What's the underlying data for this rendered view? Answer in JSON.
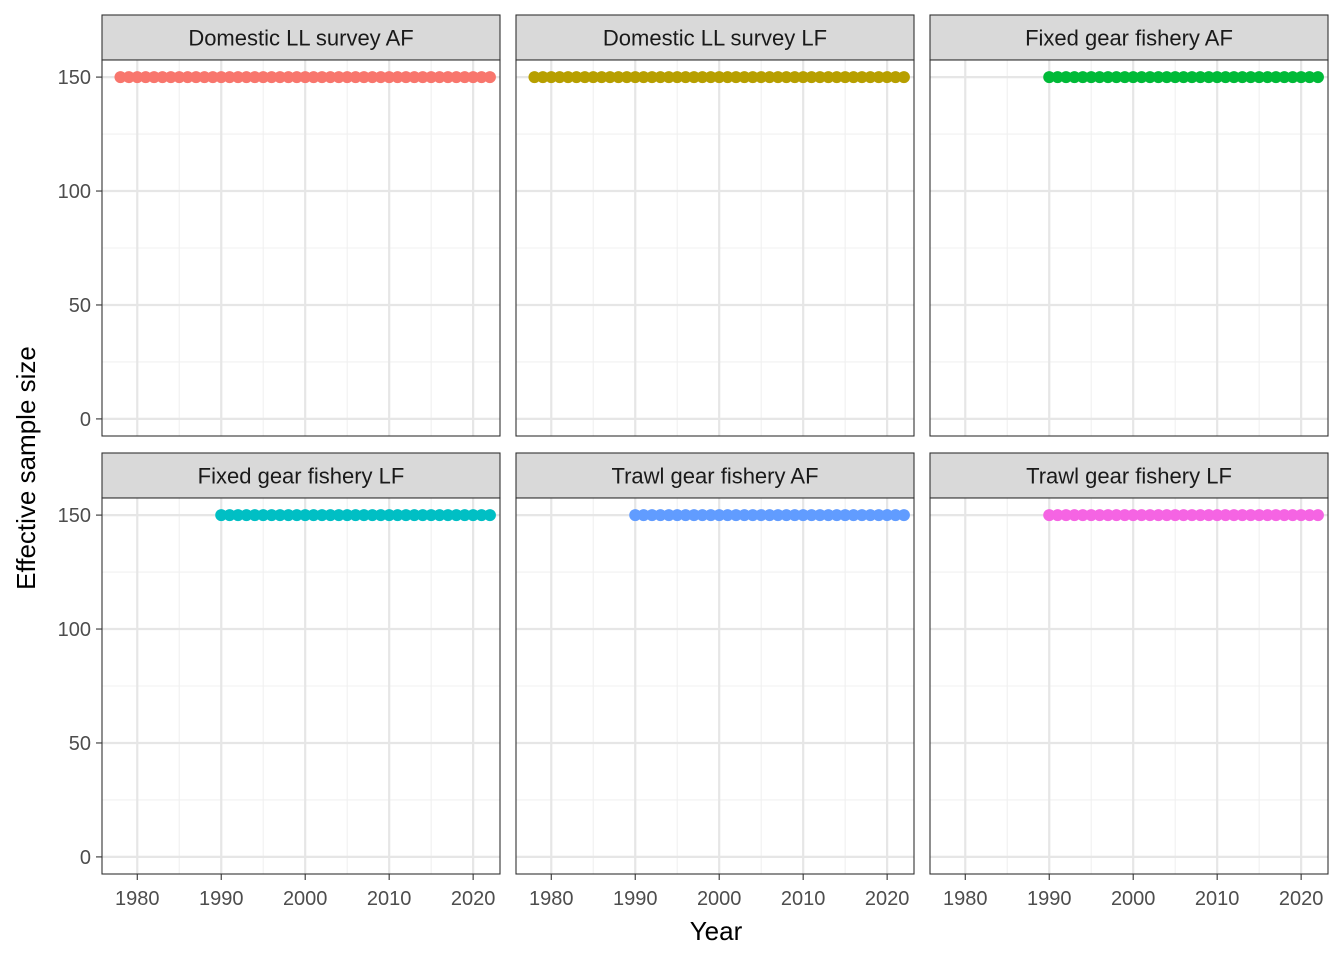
{
  "chart_data": {
    "type": "scatter",
    "layout": "facet-grid 2x3",
    "xlabel": "Year",
    "ylabel": "Effective sample size",
    "xlim": [
      1975.8,
      2023.2
    ],
    "ylim": [
      -7.5,
      157.5
    ],
    "x_ticks": [
      1980,
      1990,
      2000,
      2010,
      2020
    ],
    "y_ticks": [
      0,
      50,
      100,
      150
    ],
    "grid": true,
    "legend": "none",
    "panels": [
      {
        "title": "Domestic LL survey AF",
        "color": "#F8766D",
        "x_start": 1978,
        "x_end": 2022,
        "value": 150
      },
      {
        "title": "Domestic LL survey LF",
        "color": "#B79F00",
        "x_start": 1978,
        "x_end": 2022,
        "value": 150
      },
      {
        "title": "Fixed gear fishery AF",
        "color": "#00BA38",
        "x_start": 1990,
        "x_end": 2022,
        "value": 150
      },
      {
        "title": "Fixed gear fishery LF",
        "color": "#00BFC4",
        "x_start": 1990,
        "x_end": 2022,
        "value": 150
      },
      {
        "title": "Trawl gear fishery AF",
        "color": "#619CFF",
        "x_start": 1990,
        "x_end": 2022,
        "value": 150
      },
      {
        "title": "Trawl gear fishery LF",
        "color": "#F564E3",
        "x_start": 1990,
        "x_end": 2022,
        "value": 150
      }
    ]
  }
}
